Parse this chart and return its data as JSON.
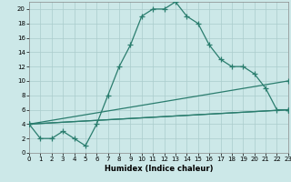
{
  "background_color": "#cce8e8",
  "grid_color": "#aacccc",
  "line_color": "#2a7d6e",
  "xlabel": "Humidex (Indice chaleur)",
  "xlim": [
    0,
    23
  ],
  "ylim": [
    0,
    21
  ],
  "xticks": [
    0,
    1,
    2,
    3,
    4,
    5,
    6,
    7,
    8,
    9,
    10,
    11,
    12,
    13,
    14,
    15,
    16,
    17,
    18,
    19,
    20,
    21,
    22,
    23
  ],
  "yticks": [
    0,
    2,
    4,
    6,
    8,
    10,
    12,
    14,
    16,
    18,
    20
  ],
  "curve1_x": [
    0,
    1,
    2,
    3,
    4,
    5,
    6,
    7,
    8,
    9,
    10,
    11,
    12,
    13,
    14,
    15,
    16,
    17,
    18,
    19,
    20,
    21,
    22,
    23
  ],
  "curve1_y": [
    4,
    2,
    2,
    3,
    2,
    1,
    4,
    8,
    12,
    15,
    19,
    20,
    20,
    21,
    19,
    18,
    15,
    13,
    12,
    12,
    11,
    9,
    6,
    6
  ],
  "curve2_x": [
    0,
    23
  ],
  "curve2_y": [
    4,
    10
  ],
  "curve3_x": [
    0,
    23
  ],
  "curve3_y": [
    4,
    6
  ],
  "curve4_x": [
    0,
    23
  ],
  "curve4_y": [
    4,
    6
  ]
}
